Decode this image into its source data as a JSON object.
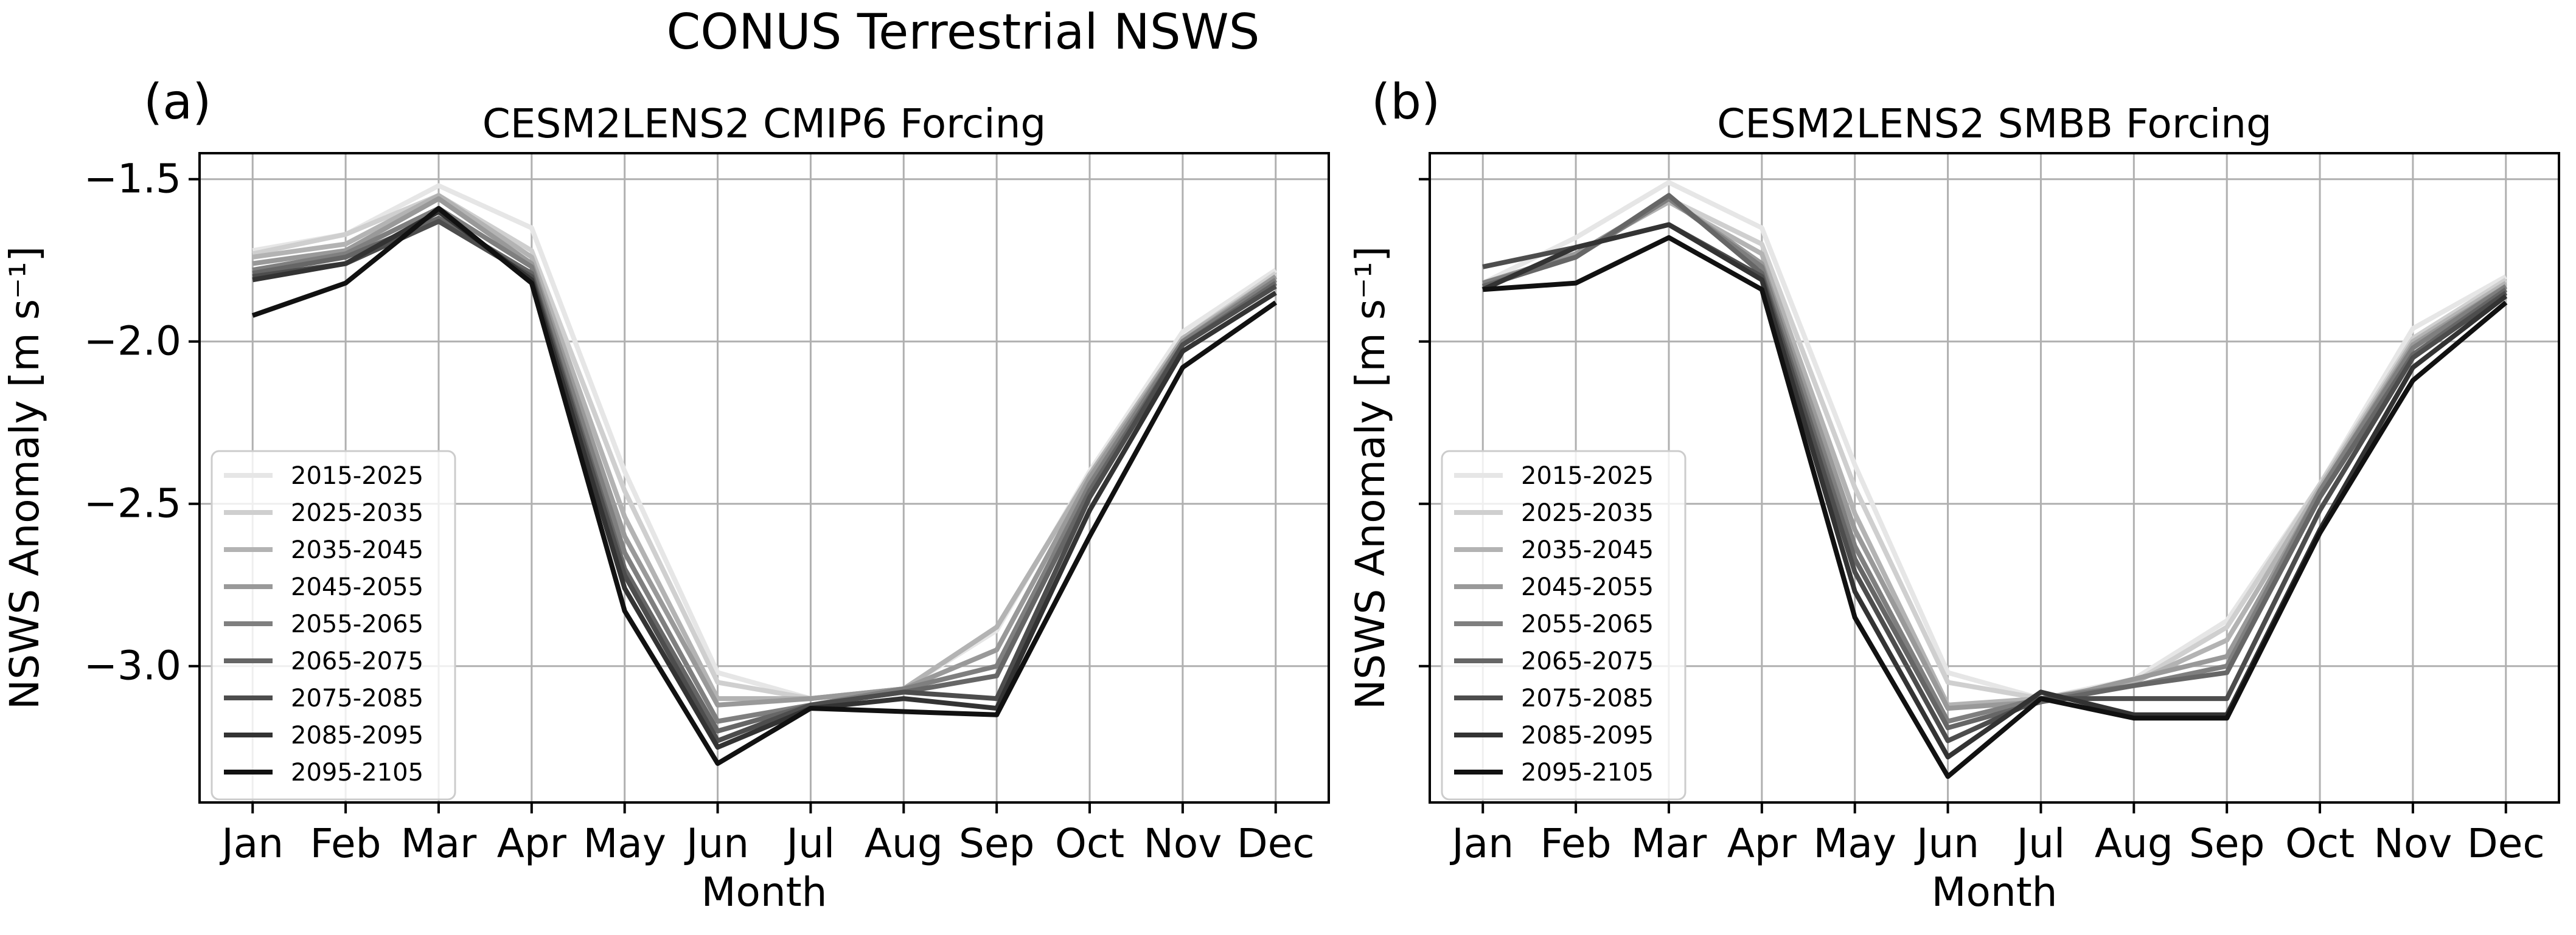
{
  "figure_title": "CONUS Terrestrial NSWS",
  "chart_data": [
    {
      "type": "line",
      "panel_label": "(a)",
      "title": "CESM2LENS2 CMIP6 Forcing",
      "xlabel": "Month",
      "ylabel": "NSWS Anomaly [m s⁻¹]",
      "categories": [
        "Jan",
        "Feb",
        "Mar",
        "Apr",
        "May",
        "Jun",
        "Jul",
        "Aug",
        "Sep",
        "Oct",
        "Nov",
        "Dec"
      ],
      "ylim": [
        -3.42,
        -1.42
      ],
      "yticks": [
        -1.5,
        -2.0,
        -2.5,
        -3.0
      ],
      "ytick_labels": [
        "−1.5",
        "−2.0",
        "−2.5",
        "−3.0"
      ],
      "grid": true,
      "legend_position": "lower-left",
      "series": [
        {
          "name": "2015-2025",
          "color": "#e6e6e6",
          "values": [
            -1.72,
            -1.67,
            -1.52,
            -1.65,
            -2.4,
            -3.02,
            -3.1,
            -3.07,
            -2.89,
            -2.4,
            -1.97,
            -1.78
          ]
        },
        {
          "name": "2025-2035",
          "color": "#cfcfcf",
          "values": [
            -1.73,
            -1.67,
            -1.55,
            -1.72,
            -2.46,
            -3.05,
            -3.1,
            -3.07,
            -2.88,
            -2.41,
            -1.99,
            -1.79
          ]
        },
        {
          "name": "2035-2045",
          "color": "#b3b3b3",
          "values": [
            -1.74,
            -1.7,
            -1.55,
            -1.74,
            -2.54,
            -3.1,
            -3.1,
            -3.07,
            -2.88,
            -2.41,
            -1.99,
            -1.8
          ]
        },
        {
          "name": "2045-2055",
          "color": "#999999",
          "values": [
            -1.76,
            -1.72,
            -1.56,
            -1.76,
            -2.6,
            -3.12,
            -3.1,
            -3.07,
            -2.95,
            -2.42,
            -2.0,
            -1.8
          ]
        },
        {
          "name": "2055-2065",
          "color": "#7f7f7f",
          "values": [
            -1.78,
            -1.73,
            -1.59,
            -1.77,
            -2.65,
            -3.17,
            -3.12,
            -3.07,
            -3.0,
            -2.44,
            -2.0,
            -1.81
          ]
        },
        {
          "name": "2065-2075",
          "color": "#666666",
          "values": [
            -1.79,
            -1.74,
            -1.62,
            -1.79,
            -2.7,
            -3.2,
            -3.12,
            -3.08,
            -3.03,
            -2.46,
            -2.01,
            -1.82
          ]
        },
        {
          "name": "2075-2085",
          "color": "#4d4d4d",
          "values": [
            -1.8,
            -1.76,
            -1.63,
            -1.8,
            -2.72,
            -3.23,
            -3.12,
            -3.08,
            -3.1,
            -2.48,
            -2.01,
            -1.83
          ]
        },
        {
          "name": "2085-2095",
          "color": "#333333",
          "values": [
            -1.81,
            -1.76,
            -1.6,
            -1.81,
            -2.76,
            -3.25,
            -3.13,
            -3.1,
            -3.13,
            -2.52,
            -2.03,
            -1.85
          ]
        },
        {
          "name": "2095-2105",
          "color": "#111111",
          "values": [
            -1.92,
            -1.82,
            -1.59,
            -1.82,
            -2.83,
            -3.3,
            -3.13,
            -3.14,
            -3.15,
            -2.6,
            -2.08,
            -1.88
          ]
        }
      ]
    },
    {
      "type": "line",
      "panel_label": "(b)",
      "title": "CESM2LENS2 SMBB Forcing",
      "xlabel": "Month",
      "ylabel": "NSWS Anomaly [m s⁻¹]",
      "categories": [
        "Jan",
        "Feb",
        "Mar",
        "Apr",
        "May",
        "Jun",
        "Jul",
        "Aug",
        "Sep",
        "Oct",
        "Nov",
        "Dec"
      ],
      "ylim": [
        -3.42,
        -1.42
      ],
      "yticks": [
        -1.5,
        -2.0,
        -2.5,
        -3.0
      ],
      "ytick_labels": [
        "",
        "",
        "",
        ""
      ],
      "grid": true,
      "legend_position": "lower-left",
      "series": [
        {
          "name": "2015-2025",
          "color": "#e6e6e6",
          "values": [
            -1.82,
            -1.68,
            -1.51,
            -1.65,
            -2.38,
            -3.02,
            -3.1,
            -3.04,
            -2.86,
            -2.44,
            -1.96,
            -1.8
          ]
        },
        {
          "name": "2025-2035",
          "color": "#cfcfcf",
          "values": [
            -1.82,
            -1.73,
            -1.56,
            -1.7,
            -2.45,
            -3.05,
            -3.1,
            -3.05,
            -2.88,
            -2.44,
            -1.99,
            -1.81
          ]
        },
        {
          "name": "2035-2045",
          "color": "#b3b3b3",
          "values": [
            -1.83,
            -1.73,
            -1.57,
            -1.73,
            -2.53,
            -3.12,
            -3.1,
            -3.05,
            -2.92,
            -2.45,
            -2.0,
            -1.82
          ]
        },
        {
          "name": "2045-2055",
          "color": "#999999",
          "values": [
            -1.82,
            -1.73,
            -1.56,
            -1.76,
            -2.58,
            -3.13,
            -3.11,
            -3.04,
            -2.97,
            -2.46,
            -2.01,
            -1.83
          ]
        },
        {
          "name": "2055-2065",
          "color": "#7f7f7f",
          "values": [
            -1.82,
            -1.74,
            -1.56,
            -1.77,
            -2.63,
            -3.17,
            -3.1,
            -3.06,
            -3.0,
            -2.46,
            -2.02,
            -1.83
          ]
        },
        {
          "name": "2065-2075",
          "color": "#666666",
          "values": [
            -1.83,
            -1.74,
            -1.55,
            -1.79,
            -2.67,
            -3.19,
            -3.11,
            -3.06,
            -3.02,
            -2.48,
            -2.04,
            -1.84
          ]
        },
        {
          "name": "2075-2085",
          "color": "#4d4d4d",
          "values": [
            -1.77,
            -1.71,
            -1.64,
            -1.8,
            -2.71,
            -3.23,
            -3.1,
            -3.1,
            -3.1,
            -2.52,
            -2.05,
            -1.85
          ]
        },
        {
          "name": "2085-2095",
          "color": "#333333",
          "values": [
            -1.84,
            -1.71,
            -1.64,
            -1.81,
            -2.77,
            -3.28,
            -3.08,
            -3.15,
            -3.15,
            -2.58,
            -2.08,
            -1.86
          ]
        },
        {
          "name": "2095-2105",
          "color": "#111111",
          "values": [
            -1.84,
            -1.82,
            -1.68,
            -1.84,
            -2.85,
            -3.34,
            -3.1,
            -3.16,
            -3.16,
            -2.59,
            -2.12,
            -1.88
          ]
        }
      ]
    }
  ]
}
